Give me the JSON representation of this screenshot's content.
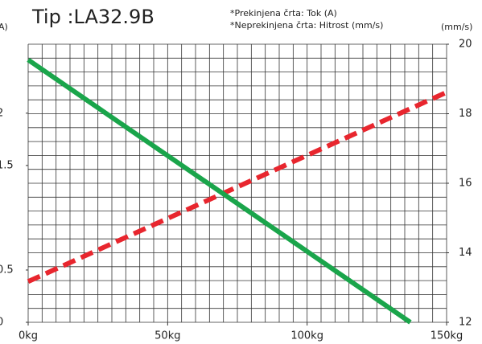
{
  "chart_data": {
    "type": "line",
    "title": "Tip :LA32.9B",
    "annotations": [
      "*Prekinjena črta: Tok (A)",
      "*Neprekinjena črta: Hitrost (mm/s)"
    ],
    "y_label": "A)",
    "y2_label": "(mm/s)",
    "xlim": [
      0,
      150
    ],
    "xticks": [
      {
        "value": 0,
        "label": "0kg"
      },
      {
        "value": 50,
        "label": "50kg"
      },
      {
        "value": 100,
        "label": "100kg"
      },
      {
        "value": 150,
        "label": "150kg"
      }
    ],
    "ylim": [
      0,
      2.66
    ],
    "yticks": [
      0,
      0.5,
      1.5,
      2
    ],
    "y2lim": [
      12,
      20
    ],
    "y2ticks": [
      12,
      14,
      16,
      18,
      20
    ],
    "grid": true,
    "series": [
      {
        "name": "Tok (A)",
        "color": "#e8262e",
        "dashed": true,
        "x": [
          0,
          150
        ],
        "values": [
          0.39,
          2.2
        ]
      },
      {
        "name": "Hitrost (mm/s)",
        "color": "#1aa54b",
        "dashed": false,
        "axis": "y2",
        "x": [
          0,
          137
        ],
        "values": [
          19.55,
          12
        ]
      }
    ]
  }
}
